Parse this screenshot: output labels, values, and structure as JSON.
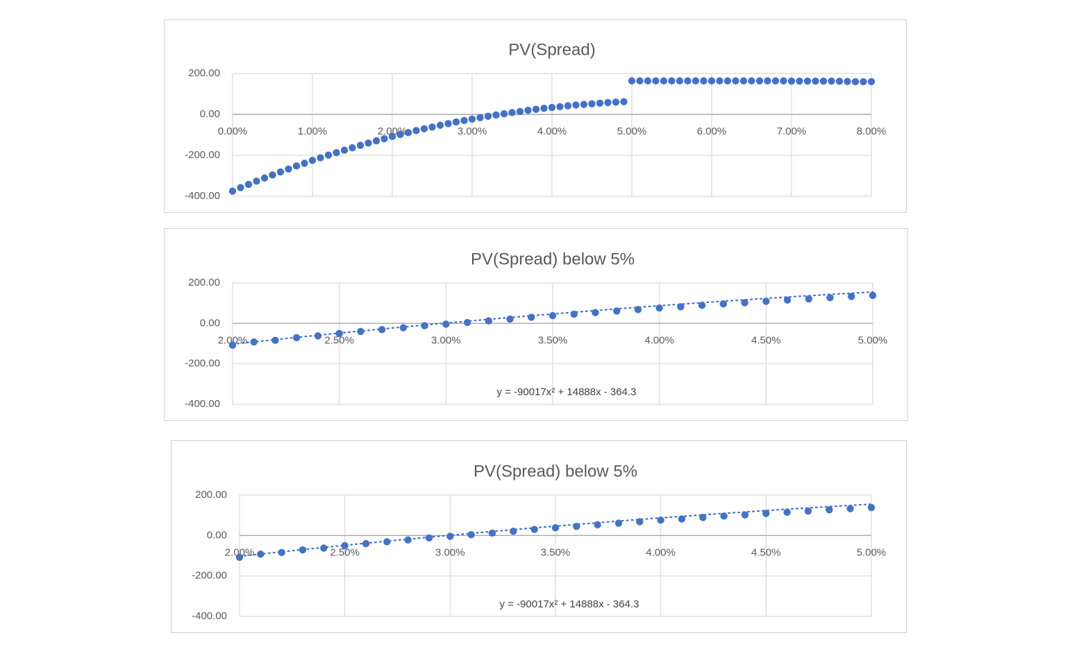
{
  "chart_data": [
    {
      "type": "scatter",
      "title": "PV(Spread)",
      "xlabel": "",
      "ylabel": "",
      "xlim": [
        0,
        0.08
      ],
      "ylim": [
        -400,
        200
      ],
      "x_ticks": [
        0,
        0.01,
        0.02,
        0.03,
        0.04,
        0.05,
        0.06,
        0.07,
        0.08
      ],
      "x_tick_labels": [
        "0.00%",
        "1.00%",
        "2.00%",
        "3.00%",
        "4.00%",
        "5.00%",
        "6.00%",
        "7.00%",
        "8.00%"
      ],
      "y_ticks": [
        200,
        0,
        -200,
        -400
      ],
      "y_tick_labels": [
        "200.00",
        "0.00",
        "-200.00",
        "-400.00"
      ],
      "grid": true,
      "legend": "none",
      "marker_color": "#4472C4",
      "series": [
        {
          "x": [
            0,
            0.001,
            0.002,
            0.003,
            0.004,
            0.005,
            0.006,
            0.007,
            0.008,
            0.009,
            0.01,
            0.011,
            0.012,
            0.013,
            0.014,
            0.015,
            0.016,
            0.017,
            0.018,
            0.019,
            0.02,
            0.021,
            0.022,
            0.023,
            0.024,
            0.025,
            0.026,
            0.027,
            0.028,
            0.029,
            0.03,
            0.031,
            0.032,
            0.033,
            0.034,
            0.035,
            0.036,
            0.037,
            0.038,
            0.039,
            0.04,
            0.041,
            0.042,
            0.043,
            0.044,
            0.045,
            0.046,
            0.047,
            0.048,
            0.049,
            0.05,
            0.051,
            0.052,
            0.053,
            0.054,
            0.055,
            0.056,
            0.057,
            0.058,
            0.059,
            0.06,
            0.061,
            0.062,
            0.063,
            0.064,
            0.065,
            0.066,
            0.067,
            0.068,
            0.069,
            0.07,
            0.071,
            0.072,
            0.073,
            0.074,
            0.075,
            0.076,
            0.077,
            0.078,
            0.079,
            0.08
          ],
          "y": [
            -375,
            -358,
            -342,
            -326,
            -311,
            -296,
            -281,
            -267,
            -252,
            -239,
            -225,
            -212,
            -199,
            -187,
            -175,
            -163,
            -151,
            -140,
            -129,
            -119,
            -108,
            -98,
            -89,
            -79,
            -70,
            -62,
            -53,
            -45,
            -37,
            -30,
            -23,
            -16,
            -9,
            -3,
            3,
            9,
            14,
            20,
            25,
            30,
            34,
            38,
            42,
            46,
            49,
            52,
            55,
            58,
            60,
            62,
            164,
            164,
            164,
            164,
            164,
            164,
            164,
            164,
            164,
            164,
            164,
            164,
            164,
            164,
            164,
            164,
            164,
            164,
            164,
            164,
            163,
            163,
            163,
            163,
            163,
            163,
            162,
            161,
            160,
            160,
            160
          ]
        }
      ]
    },
    {
      "type": "scatter",
      "title": "PV(Spread) below 5%",
      "xlabel": "",
      "ylabel": "",
      "xlim": [
        0.02,
        0.05
      ],
      "ylim": [
        -400,
        200
      ],
      "x_ticks": [
        0.02,
        0.025,
        0.03,
        0.035,
        0.04,
        0.045,
        0.05
      ],
      "x_tick_labels": [
        "2.00%",
        "2.50%",
        "3.00%",
        "3.50%",
        "4.00%",
        "4.50%",
        "5.00%"
      ],
      "y_ticks": [
        200,
        0,
        -200,
        -400
      ],
      "y_tick_labels": [
        "200.00",
        "0.00",
        "-200.00",
        "-400.00"
      ],
      "grid": true,
      "legend": "none",
      "marker_color": "#4472C4",
      "trendline": {
        "type": "polynomial",
        "order": 2,
        "style": "dotted",
        "equation": "y = -90017x² + 14888x - 364.3"
      },
      "series": [
        {
          "x": [
            0.02,
            0.021,
            0.022,
            0.023,
            0.024,
            0.025,
            0.026,
            0.027,
            0.028,
            0.029,
            0.03,
            0.031,
            0.032,
            0.033,
            0.034,
            0.035,
            0.036,
            0.037,
            0.038,
            0.039,
            0.04,
            0.041,
            0.042,
            0.043,
            0.044,
            0.045,
            0.046,
            0.047,
            0.048,
            0.049,
            0.05
          ],
          "y": [
            -108,
            -92,
            -84,
            -71,
            -62,
            -50,
            -40,
            -31,
            -22,
            -12,
            -4,
            4,
            12,
            21,
            30,
            38,
            45,
            53,
            61,
            68,
            76,
            82,
            89,
            96,
            102,
            109,
            115,
            121,
            127,
            133,
            138
          ]
        }
      ]
    },
    {
      "type": "scatter",
      "title": "PV(Spread) below 5%",
      "xlabel": "",
      "ylabel": "",
      "xlim": [
        0.02,
        0.05
      ],
      "ylim": [
        -400,
        200
      ],
      "x_ticks": [
        0.02,
        0.025,
        0.03,
        0.035,
        0.04,
        0.045,
        0.05
      ],
      "x_tick_labels": [
        "2.00%",
        "2.50%",
        "3.00%",
        "3.50%",
        "4.00%",
        "4.50%",
        "5.00%"
      ],
      "y_ticks": [
        200,
        0,
        -200,
        -400
      ],
      "y_tick_labels": [
        "200.00",
        "0.00",
        "-200.00",
        "-400.00"
      ],
      "grid": true,
      "legend": "none",
      "marker_color": "#4472C4",
      "trendline": {
        "type": "polynomial",
        "order": 2,
        "style": "dotted",
        "equation": "y = -90017x² + 14888x - 364.3"
      },
      "series": [
        {
          "x": [
            0.02,
            0.021,
            0.022,
            0.023,
            0.024,
            0.025,
            0.026,
            0.027,
            0.028,
            0.029,
            0.03,
            0.031,
            0.032,
            0.033,
            0.034,
            0.035,
            0.036,
            0.037,
            0.038,
            0.039,
            0.04,
            0.041,
            0.042,
            0.043,
            0.044,
            0.045,
            0.046,
            0.047,
            0.048,
            0.049,
            0.05
          ],
          "y": [
            -108,
            -92,
            -84,
            -71,
            -62,
            -50,
            -40,
            -31,
            -22,
            -12,
            -4,
            4,
            12,
            21,
            30,
            38,
            45,
            53,
            61,
            68,
            76,
            82,
            89,
            96,
            102,
            109,
            115,
            121,
            127,
            133,
            138
          ]
        }
      ]
    }
  ]
}
